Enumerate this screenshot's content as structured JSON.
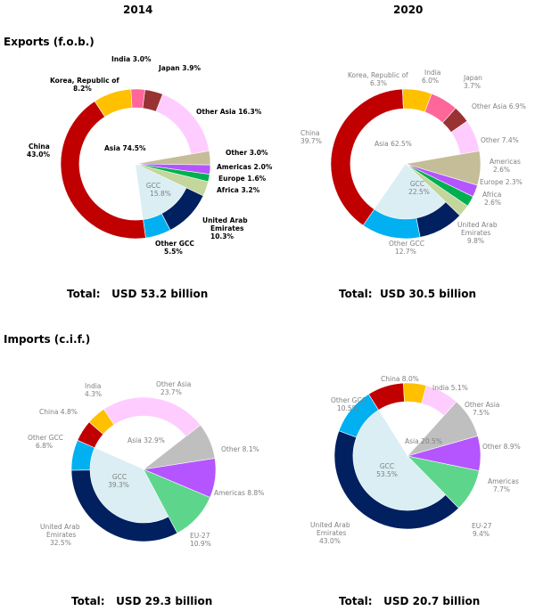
{
  "years": [
    "2014",
    "2020"
  ],
  "sections": {
    "exports": "Exports (f.o.b.)",
    "imports": "Imports (c.i.f.)"
  },
  "chart_data": [
    {
      "type": "pie",
      "id": "exp2014",
      "total_label": "Total:   USD 53.2 billion",
      "outer": [
        {
          "name": "China 43.0%",
          "value": 43.0,
          "color": "#c00000"
        },
        {
          "name": "Korea, Republic of 8.2%",
          "value": 8.2,
          "color": "#ffc000"
        },
        {
          "name": "India 3.0%",
          "value": 3.0,
          "color": "#ff6699"
        },
        {
          "name": "Japan 3.9%",
          "value": 3.9,
          "color": "#993333"
        },
        {
          "name": "Other Asia 16.3%",
          "value": 16.3,
          "color": "#ffccff"
        },
        {
          "name": "Other 3.0%",
          "value": 3.0,
          "color": "#c4bd97"
        },
        {
          "name": "Americas 2.0%",
          "value": 2.0,
          "color": "#b455ff"
        },
        {
          "name": "Europe 1.6%",
          "value": 1.6,
          "color": "#00b050"
        },
        {
          "name": "Africa 3.2%",
          "value": 3.2,
          "color": "#c3d69b"
        },
        {
          "name": "United Arab Emirates 10.3%",
          "value": 10.3,
          "color": "#002060"
        },
        {
          "name": "Other GCC 5.5%",
          "value": 5.5,
          "color": "#00b0f0"
        }
      ],
      "inner": [
        {
          "name": "Asia 74.5%",
          "value": 74.5
        },
        {
          "name": "GCC 15.8%",
          "value": 15.8
        }
      ]
    },
    {
      "type": "pie",
      "id": "exp2020",
      "total_label": "Total:  USD 30.5 billion",
      "outer": [
        {
          "name": "China 39.7%",
          "value": 39.7,
          "color": "#c00000"
        },
        {
          "name": "Korea, Republic of 6.3%",
          "value": 6.3,
          "color": "#ffc000"
        },
        {
          "name": "India 6.0%",
          "value": 6.0,
          "color": "#ff6699"
        },
        {
          "name": "Japan 3.7%",
          "value": 3.7,
          "color": "#993333"
        },
        {
          "name": "Other Asia 6.9%",
          "value": 6.9,
          "color": "#ffccff"
        },
        {
          "name": "Other 7.4%",
          "value": 7.4,
          "color": "#c4bd97"
        },
        {
          "name": "Americas 2.6%",
          "value": 2.6,
          "color": "#b455ff"
        },
        {
          "name": "Europe 2.3%",
          "value": 2.3,
          "color": "#00b050"
        },
        {
          "name": "Africa 2.6%",
          "value": 2.6,
          "color": "#c3d69b"
        },
        {
          "name": "United Arab Emirates 9.8%",
          "value": 9.8,
          "color": "#002060"
        },
        {
          "name": "Other GCC 12.7%",
          "value": 12.7,
          "color": "#00b0f0"
        }
      ],
      "inner": [
        {
          "name": "Asia 62.5%",
          "value": 62.5
        },
        {
          "name": "GCC 22.5%",
          "value": 22.5
        }
      ]
    },
    {
      "type": "pie",
      "id": "imp2014",
      "total_label": "Total:   USD 29.3 billion",
      "outer": [
        {
          "name": "Other Asia 23.7%",
          "value": 23.7,
          "color": "#ffccff"
        },
        {
          "name": "Other 8.1%",
          "value": 8.1,
          "color": "#bfbfbf"
        },
        {
          "name": "Americas 8.8%",
          "value": 8.8,
          "color": "#b455ff"
        },
        {
          "name": "EU-27 10.9%",
          "value": 10.9,
          "color": "#5dd68c"
        },
        {
          "name": "United Arab Emirates 32.5%",
          "value": 32.5,
          "color": "#002060"
        },
        {
          "name": "Other GCC 6.8%",
          "value": 6.8,
          "color": "#00b0f0"
        },
        {
          "name": "China 4.8%",
          "value": 4.8,
          "color": "#c00000"
        },
        {
          "name": "India 4.3%",
          "value": 4.3,
          "color": "#ffc000"
        }
      ],
      "inner": [
        {
          "name": "Asia 32.9%",
          "value": 32.9
        },
        {
          "name": "GCC 39.3%",
          "value": 39.3
        }
      ]
    },
    {
      "type": "pie",
      "id": "imp2020",
      "total_label": "Total:   USD 20.7 billion",
      "outer": [
        {
          "name": "India 5.1%",
          "value": 5.1,
          "color": "#ffc000"
        },
        {
          "name": "Other Asia 7.5%",
          "value": 7.5,
          "color": "#ffccff"
        },
        {
          "name": "Other 8.9%",
          "value": 8.9,
          "color": "#bfbfbf"
        },
        {
          "name": "Americas 7.7%",
          "value": 7.7,
          "color": "#b455ff"
        },
        {
          "name": "EU-27 9.4%",
          "value": 9.4,
          "color": "#5dd68c"
        },
        {
          "name": "United Arab Emirates 43.0%",
          "value": 43.0,
          "color": "#002060"
        },
        {
          "name": "Other GCC 10.5%",
          "value": 10.5,
          "color": "#00b0f0"
        },
        {
          "name": "China 8.0%",
          "value": 8.0,
          "color": "#c00000"
        }
      ],
      "inner": [
        {
          "name": "Asia 20.5%",
          "value": 20.5
        },
        {
          "name": "GCC 53.5%",
          "value": 53.5
        }
      ]
    }
  ]
}
